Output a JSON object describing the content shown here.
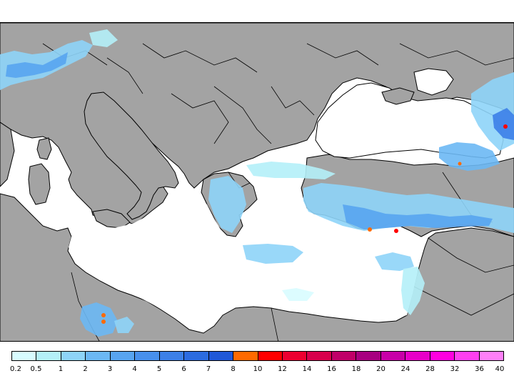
{
  "colors": {
    "land": "#a3a3a3",
    "sea": "#ffffff",
    "border": "#000000",
    "rain_palette": [
      "#d8fcff",
      "#b4f0f8",
      "#8ed4f8",
      "#6cb8f4",
      "#58a4f0",
      "#4890ec",
      "#3c80e8",
      "#2c6ce0",
      "#2058d8",
      "#ff6a00",
      "#ff0000",
      "#ec0030",
      "#d8004c",
      "#c00068",
      "#a80080",
      "#c800a8",
      "#e800c8",
      "#ff00e0",
      "#ff40f0",
      "#ff80f8"
    ]
  },
  "legend": {
    "ticks": [
      "0.2",
      "0.5",
      "1",
      "2",
      "3",
      "4",
      "5",
      "6",
      "7",
      "8",
      "10",
      "12",
      "14",
      "16",
      "18",
      "20",
      "24",
      "28",
      "32",
      "36",
      "40"
    ]
  }
}
